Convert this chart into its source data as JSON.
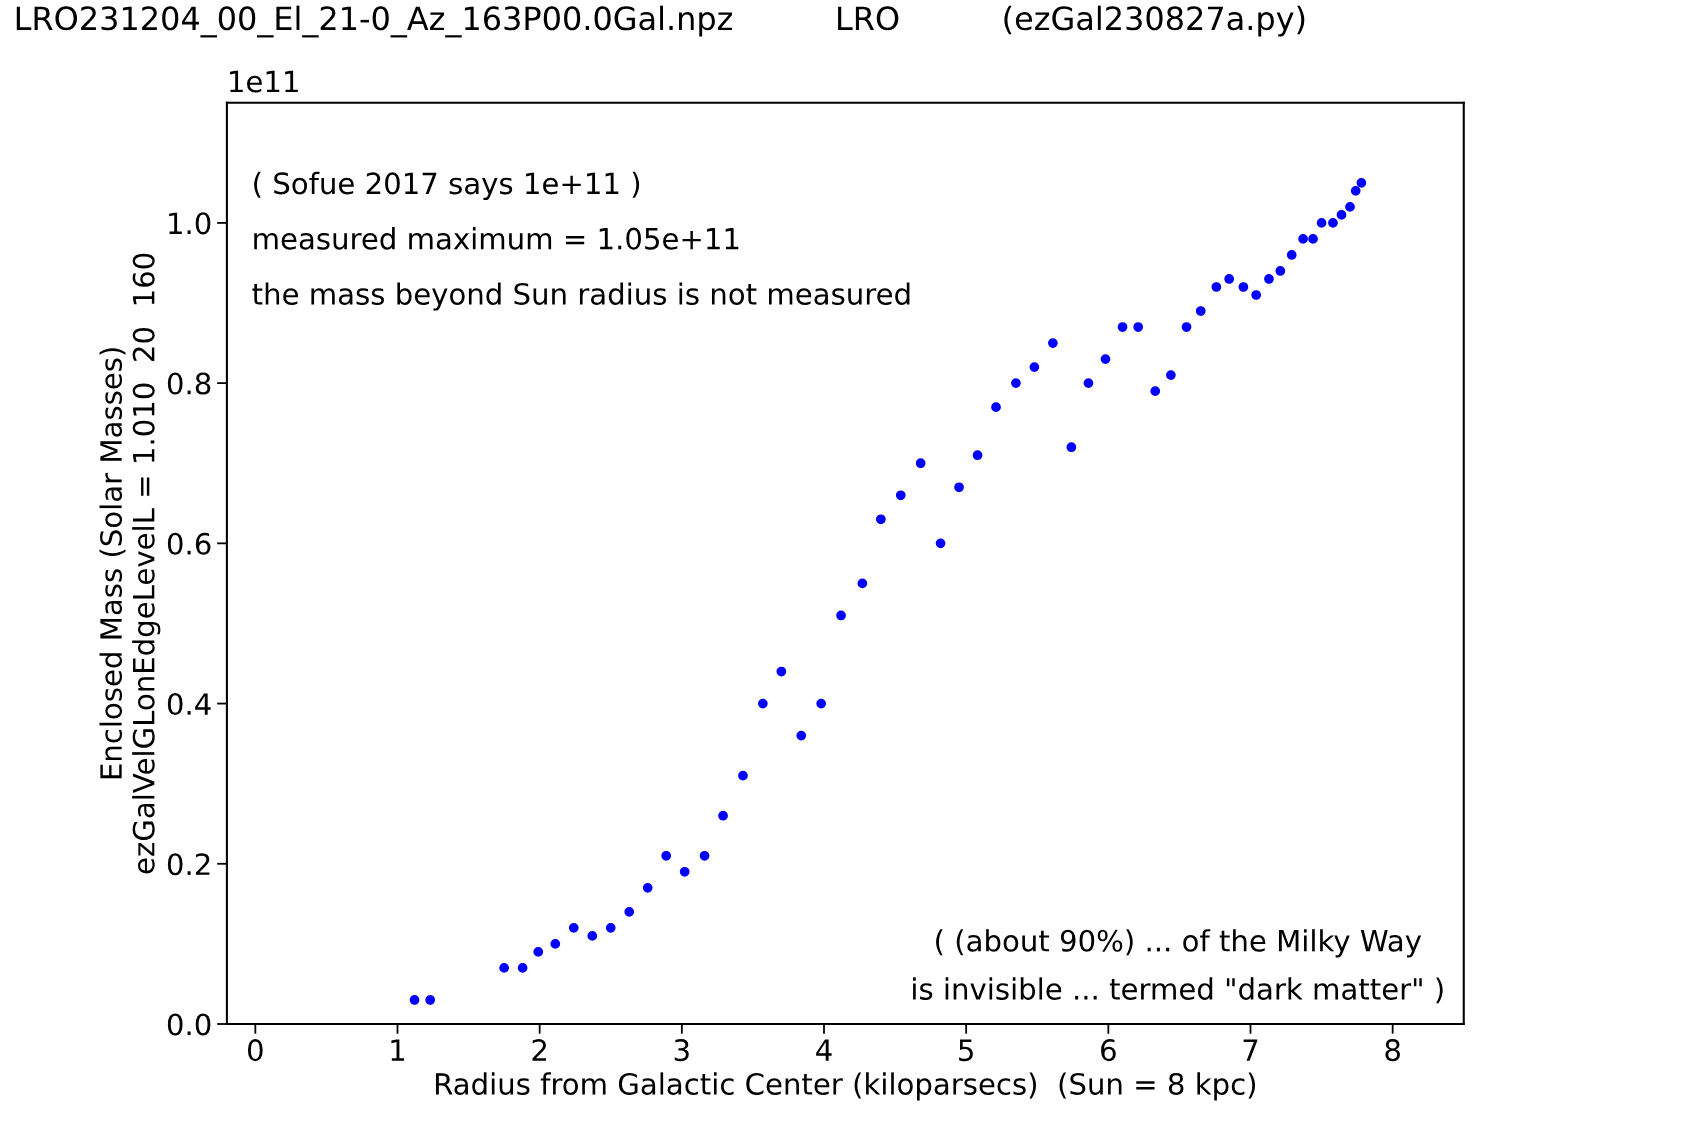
{
  "chart_data": {
    "type": "scatter",
    "title": "LRO231204_00_El_21-0_Az_163P00.0Gal.npz          LRO          (ezGal230827a.py)",
    "xlabel": "Radius from Galactic Center (kiloparsecs)  (Sun = 8 kpc)",
    "ylabel": "Enclosed Mass (Solar Masses)\nezGalVelGLonEdgeLevelL = 1.010  20  160",
    "annotations": [
      "1e11",
      "( Sofue 2017 says 1e+11 )",
      "measured maximum = 1.05e+11",
      "the mass beyond Sun radius is not measured",
      "( (about 90%) ... of the Milky Way\nis invisible ... termed \"dark matter\" )"
    ],
    "x": [
      1.12,
      1.23,
      1.75,
      1.88,
      1.99,
      2.11,
      2.24,
      2.37,
      2.5,
      2.63,
      2.76,
      2.89,
      3.02,
      3.16,
      3.29,
      3.43,
      3.57,
      3.7,
      3.84,
      3.98,
      4.12,
      4.27,
      4.4,
      4.54,
      4.68,
      4.82,
      4.95,
      5.08,
      5.21,
      5.35,
      5.48,
      5.61,
      5.74,
      5.86,
      5.98,
      6.1,
      6.21,
      6.33,
      6.44,
      6.55,
      6.65,
      6.76,
      6.85,
      6.95,
      7.04,
      7.13,
      7.21,
      7.29,
      7.37,
      7.44,
      7.5,
      7.58,
      7.64,
      7.7,
      7.74,
      7.78
    ],
    "series": [
      {
        "color": "#0000ff",
        "values": [
          0.03,
          0.03,
          0.07,
          0.07,
          0.09,
          0.1,
          0.12,
          0.11,
          0.12,
          0.14,
          0.17,
          0.21,
          0.19,
          0.21,
          0.26,
          0.31,
          0.4,
          0.44,
          0.36,
          0.4,
          0.51,
          0.55,
          0.63,
          0.66,
          0.7,
          0.6,
          0.67,
          0.71,
          0.77,
          0.8,
          0.82,
          0.85,
          0.72,
          0.8,
          0.83,
          0.87,
          0.87,
          0.79,
          0.81,
          0.87,
          0.89,
          0.92,
          0.93,
          0.92,
          0.91,
          0.93,
          0.94,
          0.96,
          0.98,
          0.98,
          1.0,
          1.0,
          1.01,
          1.02,
          1.04,
          1.05
        ]
      }
    ],
    "xlim": [
      -0.2,
      8.5
    ],
    "ylim": [
      0.0,
      1.15
    ],
    "xticks": [
      0,
      1,
      2,
      3,
      4,
      5,
      6,
      7,
      8
    ],
    "yticks": [
      {
        "value": 0,
        "label": "0.0"
      },
      0.2,
      0.4,
      0.6,
      0.8,
      {
        "value": 1,
        "label": "1.0"
      }
    ],
    "marker": "circle",
    "grid": false
  }
}
